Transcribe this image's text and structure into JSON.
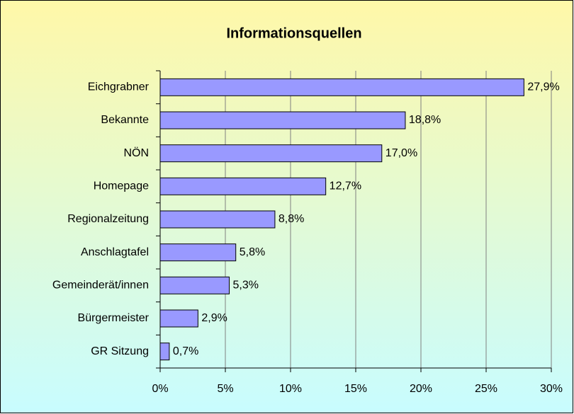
{
  "chart_data": {
    "type": "barh",
    "title": "Informationsquellen",
    "categories": [
      "Eichgrabner",
      "Bekannte",
      "NÖN",
      "Homepage",
      "Regionalzeitung",
      "Anschlagtafel",
      "Gemeinderät/innen",
      "Bürgermeister",
      "GR Sitzung"
    ],
    "values": [
      27.9,
      18.8,
      17.0,
      12.7,
      8.8,
      5.8,
      5.3,
      2.9,
      0.7
    ],
    "value_labels": [
      "27,9%",
      "18,8%",
      "17,0%",
      "12,7%",
      "8,8%",
      "5,8%",
      "5,3%",
      "2,9%",
      "0,7%"
    ],
    "color": "#9999ff",
    "xlim": [
      0,
      30
    ],
    "xticks": [
      {
        "value": 0,
        "label": "0%"
      },
      {
        "value": 5,
        "label": "5%"
      },
      {
        "value": 10,
        "label": "10%"
      },
      {
        "value": 15,
        "label": "15%"
      },
      {
        "value": 20,
        "label": "20%"
      },
      {
        "value": 25,
        "label": "25%"
      },
      {
        "value": 30,
        "label": "30%"
      }
    ],
    "grid": true
  }
}
